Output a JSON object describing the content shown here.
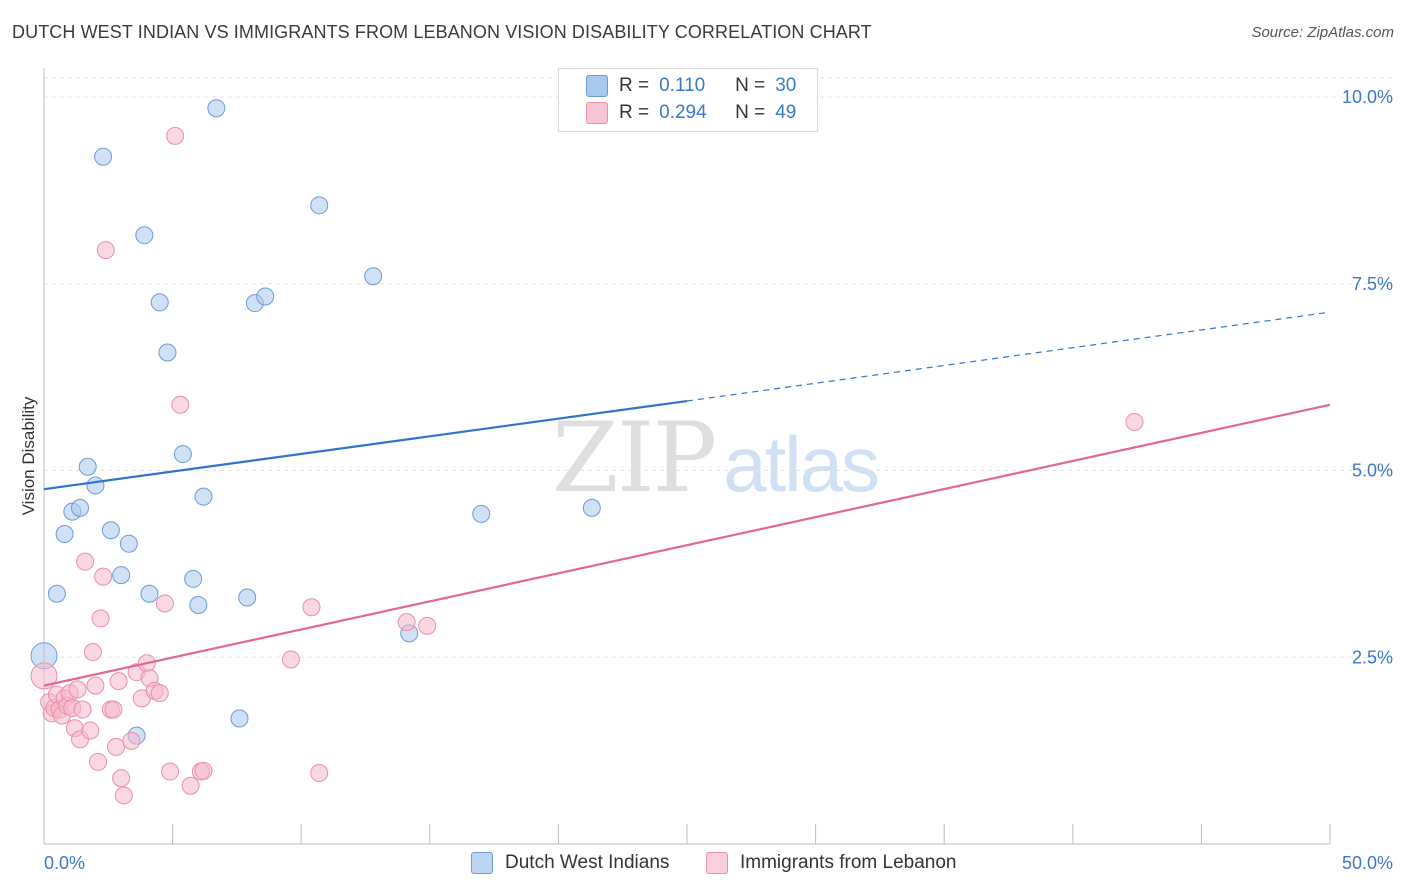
{
  "header": {
    "title": "DUTCH WEST INDIAN VS IMMIGRANTS FROM LEBANON VISION DISABILITY CORRELATION CHART",
    "source": "Source: ZipAtlas.com"
  },
  "watermark": {
    "part1": "ZIP",
    "part2": "atlas"
  },
  "legend": {
    "rows": [
      {
        "r_label": "R =",
        "r_value": "0.110",
        "n_label": "N =",
        "n_value": "30",
        "color": "#a9c8ee"
      },
      {
        "r_label": "R =",
        "r_value": "0.294",
        "n_label": "N =",
        "n_value": "49",
        "color": "#f6b8ca"
      }
    ]
  },
  "chart_data": {
    "type": "scatter",
    "title": "DUTCH WEST INDIAN VS IMMIGRANTS FROM LEBANON VISION DISABILITY CORRELATION CHART",
    "xlabel": "",
    "ylabel": "Vision Disability",
    "xlim": [
      0,
      50
    ],
    "ylim": [
      0,
      10.5
    ],
    "x_tick_labels": [
      "0.0%",
      "50.0%"
    ],
    "y_ticks": [
      2.5,
      5.0,
      7.5,
      10.0
    ],
    "y_tick_labels": [
      "2.5%",
      "5.0%",
      "7.5%",
      "10.0%"
    ],
    "grid": true,
    "legend_position": "top-center",
    "series": [
      {
        "name": "Dutch West Indians",
        "color": "#a9c8ee",
        "stroke": "#6b9bd8",
        "line_color": "#2f74c9",
        "trend": {
          "x0": 0,
          "y0": 4.75,
          "x1": 25,
          "y1": 5.93,
          "x_ext": 50,
          "y_ext": 7.12
        },
        "points": [
          [
            0.0,
            2.52
          ],
          [
            0.5,
            3.35
          ],
          [
            0.8,
            4.15
          ],
          [
            1.1,
            4.45
          ],
          [
            1.4,
            4.5
          ],
          [
            1.7,
            5.05
          ],
          [
            2.0,
            4.8
          ],
          [
            2.3,
            9.2
          ],
          [
            2.6,
            4.2
          ],
          [
            3.0,
            3.6
          ],
          [
            3.3,
            4.02
          ],
          [
            3.6,
            1.45
          ],
          [
            3.9,
            8.15
          ],
          [
            4.1,
            3.35
          ],
          [
            4.5,
            7.25
          ],
          [
            4.8,
            6.58
          ],
          [
            5.4,
            5.22
          ],
          [
            5.8,
            3.55
          ],
          [
            6.0,
            3.2
          ],
          [
            6.2,
            4.65
          ],
          [
            6.7,
            9.85
          ],
          [
            7.6,
            1.68
          ],
          [
            7.9,
            3.3
          ],
          [
            8.2,
            7.24
          ],
          [
            8.6,
            7.33
          ],
          [
            10.7,
            8.55
          ],
          [
            12.8,
            7.6
          ],
          [
            14.2,
            2.82
          ],
          [
            17.0,
            4.42
          ],
          [
            21.3,
            4.5
          ]
        ]
      },
      {
        "name": "Immigrants from Lebanon",
        "color": "#f6b8ca",
        "stroke": "#ea8eab",
        "line_color": "#e2688f",
        "trend": {
          "x0": 0,
          "y0": 2.12,
          "x1": 50,
          "y1": 5.88
        },
        "points": [
          [
            0.0,
            2.25
          ],
          [
            0.2,
            1.9
          ],
          [
            0.3,
            1.75
          ],
          [
            0.4,
            1.82
          ],
          [
            0.5,
            2.0
          ],
          [
            0.6,
            1.8
          ],
          [
            0.7,
            1.72
          ],
          [
            0.8,
            1.95
          ],
          [
            0.9,
            1.85
          ],
          [
            1.0,
            2.02
          ],
          [
            1.1,
            1.82
          ],
          [
            1.2,
            1.55
          ],
          [
            1.3,
            2.07
          ],
          [
            1.4,
            1.4
          ],
          [
            1.5,
            1.8
          ],
          [
            1.6,
            3.78
          ],
          [
            1.8,
            1.52
          ],
          [
            1.9,
            2.57
          ],
          [
            2.0,
            2.12
          ],
          [
            2.1,
            1.1
          ],
          [
            2.2,
            3.02
          ],
          [
            2.3,
            3.58
          ],
          [
            2.4,
            7.95
          ],
          [
            2.6,
            1.8
          ],
          [
            2.7,
            1.8
          ],
          [
            2.8,
            1.3
          ],
          [
            2.9,
            2.18
          ],
          [
            3.0,
            0.88
          ],
          [
            3.1,
            0.65
          ],
          [
            3.4,
            1.38
          ],
          [
            3.6,
            2.3
          ],
          [
            3.8,
            1.95
          ],
          [
            4.0,
            2.42
          ],
          [
            4.1,
            2.22
          ],
          [
            4.3,
            2.05
          ],
          [
            4.5,
            2.02
          ],
          [
            4.7,
            3.22
          ],
          [
            4.9,
            0.97
          ],
          [
            5.1,
            9.48
          ],
          [
            5.3,
            5.88
          ],
          [
            5.7,
            0.78
          ],
          [
            6.1,
            0.97
          ],
          [
            6.2,
            0.98
          ],
          [
            9.6,
            2.47
          ],
          [
            10.4,
            3.17
          ],
          [
            10.7,
            0.95
          ],
          [
            14.1,
            2.97
          ],
          [
            14.9,
            2.92
          ],
          [
            42.4,
            5.65
          ]
        ]
      }
    ]
  }
}
